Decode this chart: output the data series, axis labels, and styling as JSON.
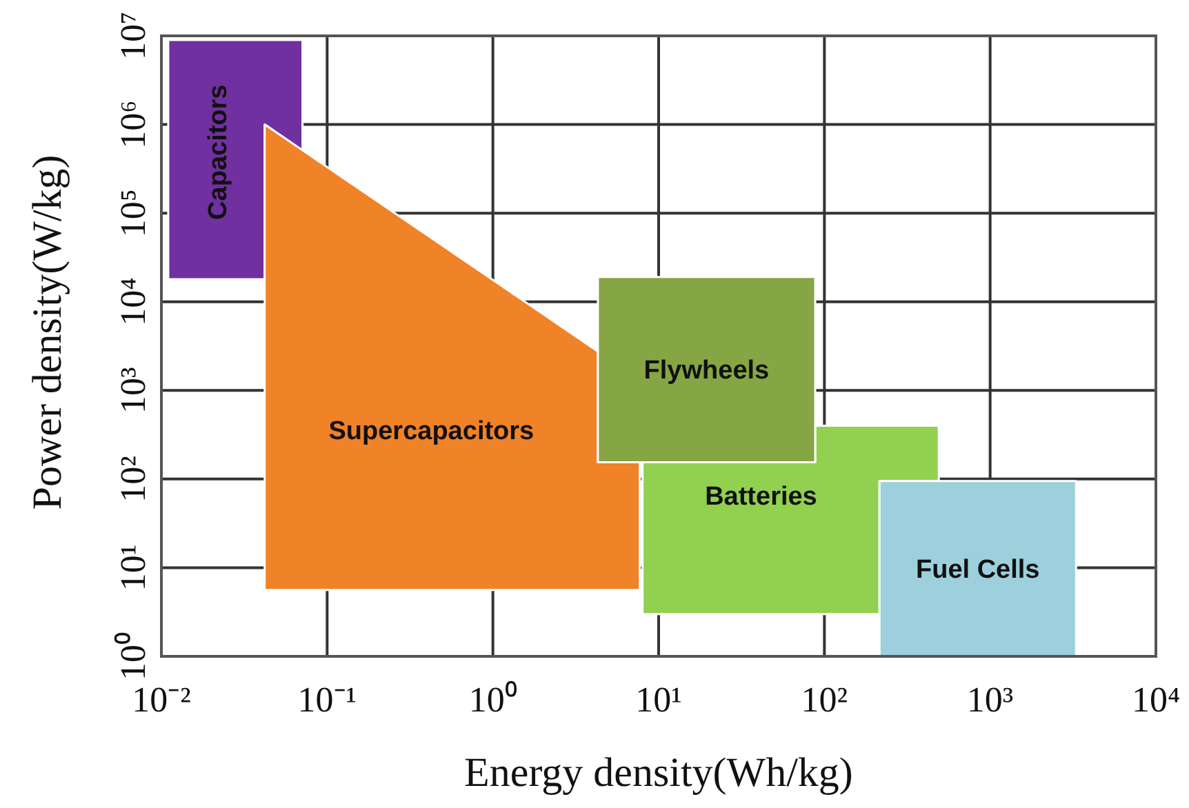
{
  "chart_data": {
    "type": "area",
    "xlabel": "Energy density(Wh/kg)",
    "ylabel": "Power density(W/kg)",
    "log": "xy",
    "grid": true,
    "xlim": [
      0.01,
      10000
    ],
    "ylim": [
      1,
      10000000
    ],
    "xticks": [
      {
        "value": 0.01,
        "label": "10⁻²"
      },
      {
        "value": 0.1,
        "label": "10⁻¹"
      },
      {
        "value": 1,
        "label": "10⁰"
      },
      {
        "value": 10,
        "label": "10¹"
      },
      {
        "value": 100,
        "label": "10²"
      },
      {
        "value": 1000,
        "label": "10³"
      },
      {
        "value": 10000,
        "label": "10⁴"
      }
    ],
    "yticks": [
      {
        "value": 1,
        "label": "10⁰"
      },
      {
        "value": 10,
        "label": "10¹"
      },
      {
        "value": 100,
        "label": "10²"
      },
      {
        "value": 1000,
        "label": "10³"
      },
      {
        "value": 10000,
        "label": "10⁴"
      },
      {
        "value": 100000,
        "label": "10⁵"
      },
      {
        "value": 1000000,
        "label": "10⁶"
      },
      {
        "value": 10000000,
        "label": "10⁷"
      }
    ],
    "series": [
      {
        "name": "Capacitors",
        "color": "#7030a0",
        "x": [
          0.011,
          0.071,
          0.071,
          0.042,
          0.042,
          0.011
        ],
        "values": [
          9000000,
          9000000,
          510000,
          1000000,
          18000,
          18000
        ]
      },
      {
        "name": "Supercapacitors",
        "color": "#f08228",
        "x": [
          0.042,
          4.3,
          4.3,
          7.7,
          7.7,
          0.042
        ],
        "values": [
          1000000,
          2750,
          155,
          155,
          5.6,
          5.6
        ]
      },
      {
        "name": "Batteries",
        "color": "#92d050",
        "x": [
          8,
          88,
          88,
          490,
          490,
          215,
          215,
          8
        ],
        "values": [
          155,
          155,
          400,
          400,
          95,
          95,
          3,
          3
        ]
      },
      {
        "name": "Flywheels",
        "color": "#86a545",
        "x": [
          4.3,
          88,
          88,
          4.3
        ],
        "values": [
          19000,
          19000,
          155,
          155
        ]
      },
      {
        "name": "Fuel Cells",
        "color": "#9dcfdc",
        "x": [
          215,
          3300,
          3300,
          215
        ],
        "values": [
          95,
          95,
          1,
          1
        ]
      }
    ]
  }
}
